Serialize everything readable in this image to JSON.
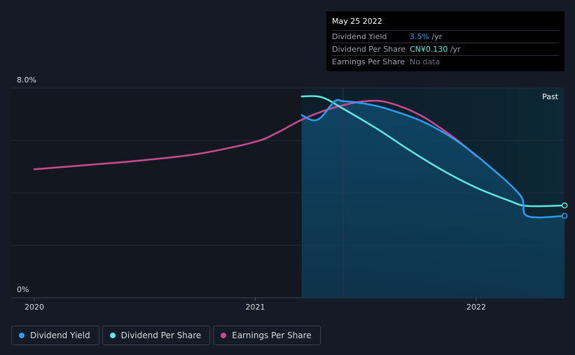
{
  "tooltip": {
    "date": "May 25 2022",
    "rows": [
      {
        "label": "Dividend Yield",
        "value": "3.5%",
        "suffix": " /yr"
      },
      {
        "label": "Dividend Per Share",
        "value": "CN¥0.130",
        "suffix": " /yr"
      },
      {
        "label": "Earnings Per Share",
        "value": "No data",
        "suffix": ""
      }
    ]
  },
  "legend": [
    {
      "label": "Dividend Yield",
      "color": "#2e9cf0"
    },
    {
      "label": "Dividend Per Share",
      "color": "#5ee8df"
    },
    {
      "label": "Earnings Per Share",
      "color": "#c94c92"
    }
  ],
  "chart_data": {
    "type": "line",
    "title": "",
    "y_tick_labels": [
      "8.0%",
      "0%"
    ],
    "ylim": [
      0,
      8
    ],
    "xlim": [
      2020,
      2022.4
    ],
    "x_ticks": [
      2020,
      2021,
      2022
    ],
    "x_tick_labels": [
      "2020",
      "2021",
      "2022"
    ],
    "past_label": "Past",
    "past_region_start": 2021.21,
    "series": [
      {
        "name": "Dividend Yield",
        "color": "#2e9cf0",
        "x": [
          2021.21,
          2021.26,
          2021.3,
          2021.36,
          2021.4,
          2021.5,
          2021.6,
          2021.75,
          2021.9,
          2022.05,
          2022.2,
          2022.23,
          2022.4
        ],
        "y": [
          6.97,
          6.77,
          6.9,
          7.5,
          7.5,
          7.4,
          7.2,
          6.75,
          6.05,
          5.08,
          3.9,
          3.12,
          3.12
        ]
      },
      {
        "name": "Dividend Per Share",
        "color": "#5ee8df",
        "x": [
          2021.21,
          2021.3,
          2021.4,
          2021.55,
          2021.7,
          2021.85,
          2022.0,
          2022.15,
          2022.23,
          2022.4
        ],
        "y": [
          7.68,
          7.65,
          7.2,
          6.45,
          5.62,
          4.85,
          4.2,
          3.7,
          3.5,
          3.52
        ]
      },
      {
        "name": "Earnings Per Share",
        "color": "#c94c92",
        "x": [
          2020.0,
          2020.25,
          2020.5,
          2020.75,
          2021.0,
          2021.1,
          2021.2,
          2021.3,
          2021.4,
          2021.5,
          2021.6,
          2021.75,
          2021.9,
          2022.0
        ],
        "y": [
          4.9,
          5.07,
          5.25,
          5.5,
          5.95,
          6.3,
          6.75,
          7.1,
          7.35,
          7.5,
          7.45,
          6.95,
          6.1,
          5.4
        ]
      }
    ],
    "end_markers": [
      {
        "series": "Dividend Yield",
        "x": 2022.4,
        "y": 3.12
      },
      {
        "series": "Dividend Per Share",
        "x": 2022.4,
        "y": 3.52
      }
    ]
  }
}
